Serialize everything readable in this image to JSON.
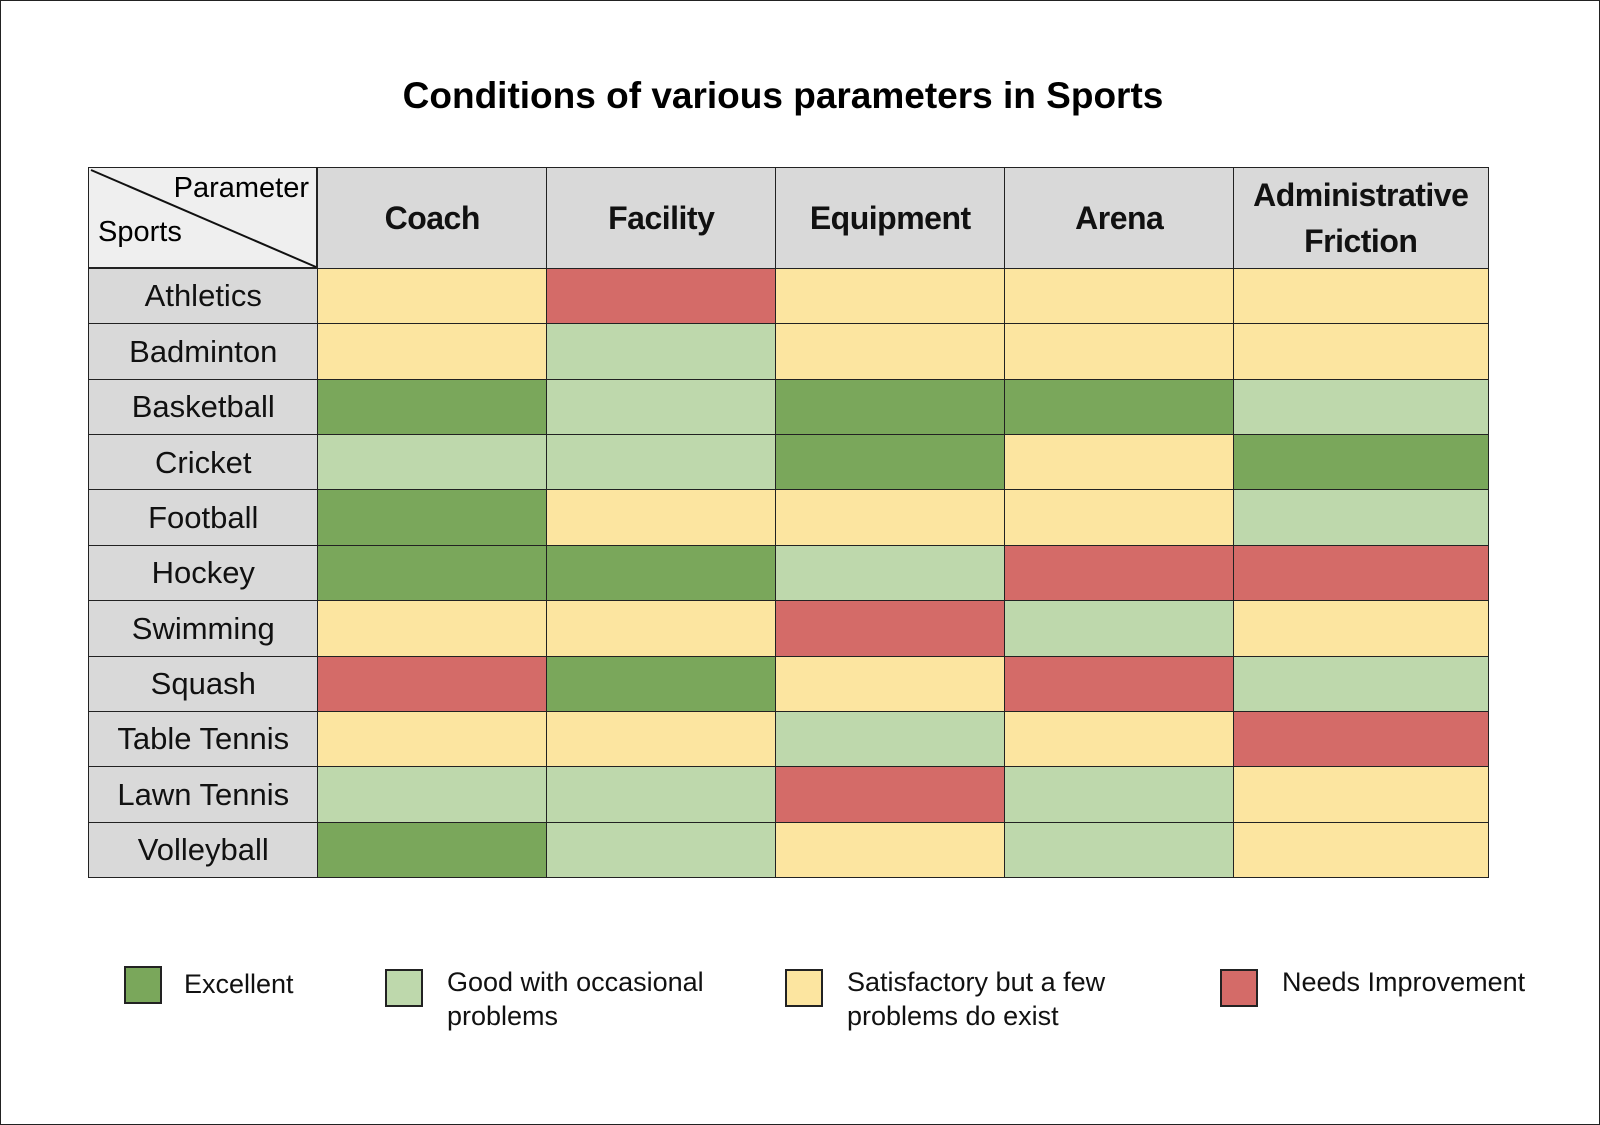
{
  "chart_data": {
    "type": "heatmap",
    "title": "Conditions of various parameters in Sports",
    "corner": {
      "column_label": "Parameter",
      "row_label": "Sports"
    },
    "columns": [
      "Coach",
      "Facility",
      "Equipment",
      "Arena",
      "Administrative Friction"
    ],
    "rows": [
      "Athletics",
      "Badminton",
      "Basketball",
      "Cricket",
      "Football",
      "Hockey",
      "Swimming",
      "Squash",
      "Table Tennis",
      "Lawn Tennis",
      "Volleyball"
    ],
    "values": [
      [
        "S",
        "N",
        "S",
        "S",
        "S"
      ],
      [
        "S",
        "G",
        "S",
        "S",
        "S"
      ],
      [
        "E",
        "G",
        "E",
        "E",
        "G"
      ],
      [
        "G",
        "G",
        "E",
        "S",
        "E"
      ],
      [
        "E",
        "S",
        "S",
        "S",
        "G"
      ],
      [
        "E",
        "E",
        "G",
        "N",
        "N"
      ],
      [
        "S",
        "S",
        "N",
        "G",
        "S"
      ],
      [
        "N",
        "E",
        "S",
        "N",
        "G"
      ],
      [
        "S",
        "S",
        "G",
        "S",
        "N"
      ],
      [
        "G",
        "G",
        "N",
        "G",
        "S"
      ],
      [
        "E",
        "G",
        "S",
        "G",
        "S"
      ]
    ],
    "legend": [
      {
        "key": "E",
        "label": "Excellent",
        "color": "#7aa75b"
      },
      {
        "key": "G",
        "label": "Good with occasional problems",
        "color": "#bed8ac"
      },
      {
        "key": "S",
        "label": "Satisfactory but a few problems do exist",
        "color": "#fce5a0"
      },
      {
        "key": "N",
        "label": "Needs Improvement",
        "color": "#d46b68"
      }
    ],
    "legend_placement": "bottom"
  }
}
